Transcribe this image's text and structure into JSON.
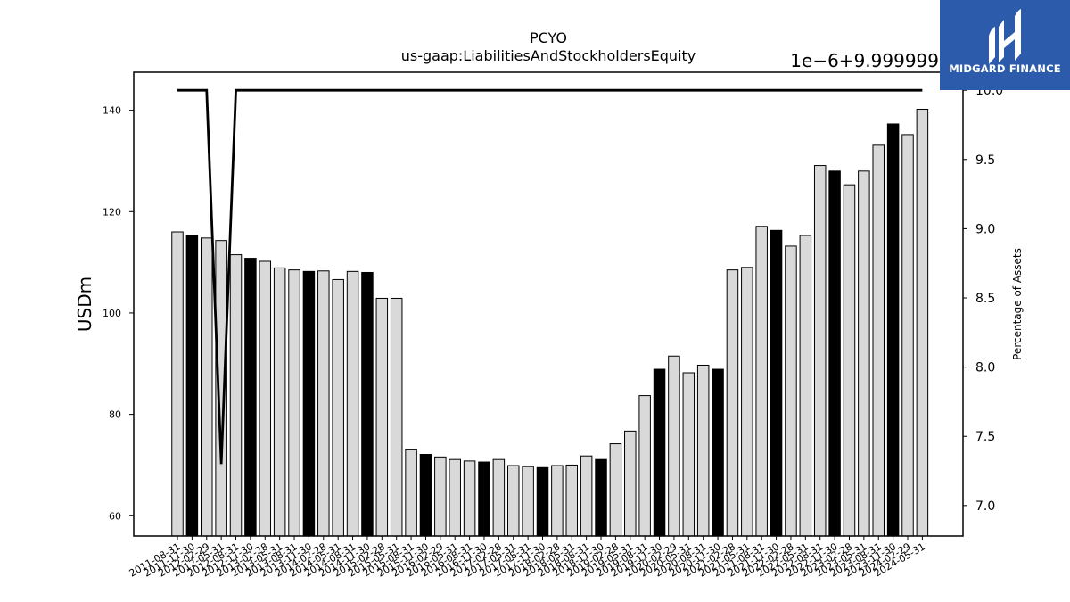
{
  "brand": {
    "name": "MIDGARD FINANCE",
    "background": "#2d5bab"
  },
  "chart_data": {
    "type": "bar",
    "title": "PCYO",
    "subtitle": "us-gaap:LiabilitiesAndStockholdersEquity",
    "ylabel": "USDm",
    "y2label": "Percentage of Assets",
    "y2_offset_label": "1e−6+9.999999",
    "ylim": [
      56.0,
      147.5
    ],
    "y2lim": [
      6.78,
      10.13
    ],
    "yticks": [
      60,
      80,
      100,
      120,
      140
    ],
    "y2ticks": [
      7.0,
      7.5,
      8.0,
      8.5,
      9.0,
      9.5,
      10.0
    ],
    "y2tick_labels": [
      "7.0",
      "7.5",
      "8.0",
      "8.5",
      "9.0",
      "9.5",
      "10.0"
    ],
    "categories": [
      "2011-08-31",
      "2011-11-30",
      "2012-02-29",
      "2012-05-31",
      "2012-08-31",
      "2012-11-30",
      "2013-02-28",
      "2013-05-31",
      "2013-08-31",
      "2013-11-30",
      "2014-02-28",
      "2014-05-31",
      "2014-08-31",
      "2014-11-30",
      "2015-02-28",
      "2015-05-31",
      "2015-08-31",
      "2015-11-30",
      "2016-02-29",
      "2016-05-31",
      "2016-08-31",
      "2016-11-30",
      "2017-02-28",
      "2017-05-31",
      "2017-08-31",
      "2017-11-30",
      "2018-02-28",
      "2018-05-31",
      "2018-08-31",
      "2018-11-30",
      "2019-02-28",
      "2019-05-31",
      "2019-08-31",
      "2019-11-30",
      "2020-02-29",
      "2020-05-31",
      "2020-08-31",
      "2020-11-30",
      "2021-02-28",
      "2021-05-31",
      "2021-08-31",
      "2021-11-30",
      "2022-02-28",
      "2022-05-31",
      "2022-08-31",
      "2022-11-30",
      "2023-02-28",
      "2023-05-31",
      "2023-08-31",
      "2023-11-30",
      "2024-02-29",
      "2024-05-31"
    ],
    "values": [
      116.0,
      115.3,
      114.8,
      114.3,
      111.5,
      110.8,
      110.2,
      108.9,
      108.5,
      108.2,
      108.3,
      106.6,
      108.2,
      108.0,
      102.9,
      102.9,
      73.0,
      72.1,
      71.6,
      71.1,
      70.8,
      70.6,
      71.1,
      69.9,
      69.7,
      69.5,
      69.9,
      70.0,
      71.8,
      71.1,
      74.2,
      76.7,
      83.7,
      88.9,
      91.5,
      88.2,
      89.7,
      88.9,
      108.5,
      109.0,
      117.1,
      116.3,
      113.2,
      115.3,
      129.1,
      128.0,
      125.3,
      128.0,
      133.1,
      137.3,
      135.2,
      140.2
    ],
    "highlight": [
      false,
      true,
      false,
      false,
      false,
      true,
      false,
      false,
      false,
      true,
      false,
      false,
      false,
      true,
      false,
      false,
      false,
      true,
      false,
      false,
      false,
      true,
      false,
      false,
      false,
      true,
      false,
      false,
      false,
      true,
      false,
      false,
      false,
      true,
      false,
      false,
      false,
      true,
      false,
      false,
      false,
      true,
      false,
      false,
      false,
      true,
      false,
      false,
      false,
      true,
      false,
      false
    ],
    "bar_color": "#d9d9d9",
    "highlight_color": "#000000",
    "line_series": {
      "axis": "right",
      "color": "#000000",
      "values": [
        10.0,
        10.0,
        10.0,
        7.3,
        10.0,
        10.0,
        10.0,
        10.0,
        10.0,
        10.0,
        10.0,
        10.0,
        10.0,
        10.0,
        10.0,
        10.0,
        10.0,
        10.0,
        10.0,
        10.0,
        10.0,
        10.0,
        10.0,
        10.0,
        10.0,
        10.0,
        10.0,
        10.0,
        10.0,
        10.0,
        10.0,
        10.0,
        10.0,
        10.0,
        10.0,
        10.0,
        10.0,
        10.0,
        10.0,
        10.0,
        10.0,
        10.0,
        10.0,
        10.0,
        10.0,
        10.0,
        10.0,
        10.0,
        10.0,
        10.0,
        10.0,
        10.0
      ]
    },
    "grid": false,
    "legend": "none"
  }
}
